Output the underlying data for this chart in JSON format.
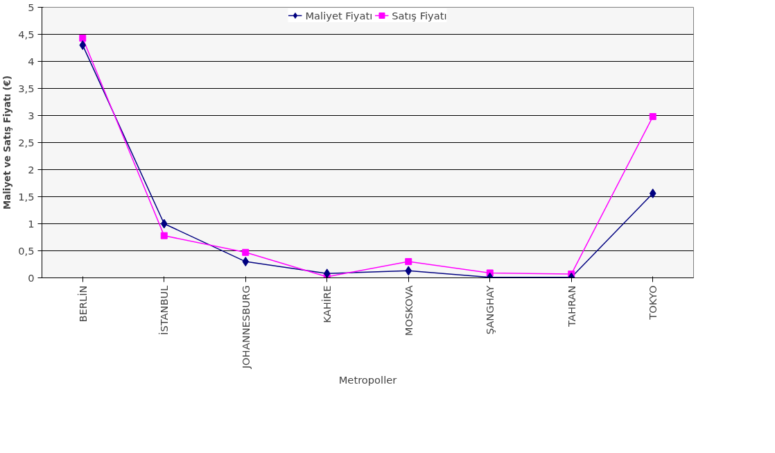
{
  "chart_data": {
    "type": "line",
    "xlabel": "Metropoller",
    "ylabel": "Maliyet ve Satış Fiyatı (€)",
    "categories": [
      "BERLİN",
      "İSTANBUL",
      "JOHANNESBURG",
      "KAHİRE",
      "MOSKOVA",
      "ŞANGHAY",
      "TAHRAN",
      "TOKYO"
    ],
    "series": [
      {
        "name": "Maliyet Fiyatı",
        "color": "#000080",
        "marker": "diamond",
        "values": [
          4.3,
          1.0,
          0.3,
          0.08,
          0.13,
          0.01,
          0.01,
          1.56
        ]
      },
      {
        "name": "Satış Fiyatı",
        "color": "#ff00ff",
        "marker": "square",
        "values": [
          4.43,
          0.78,
          0.47,
          0.02,
          0.3,
          0.09,
          0.07,
          2.98
        ]
      }
    ],
    "ylim": [
      0,
      5
    ],
    "yticks": [
      0,
      {
        "value": 0.5,
        "label": "0,5"
      },
      1,
      {
        "value": 1.5,
        "label": "1,5"
      },
      2,
      {
        "value": 2.5,
        "label": "2,5"
      },
      3,
      {
        "value": 3.5,
        "label": "3,5"
      },
      4,
      {
        "value": 4.5,
        "label": "4,5"
      },
      5
    ],
    "grid": "y",
    "legend": "top",
    "line_style": "solid"
  }
}
